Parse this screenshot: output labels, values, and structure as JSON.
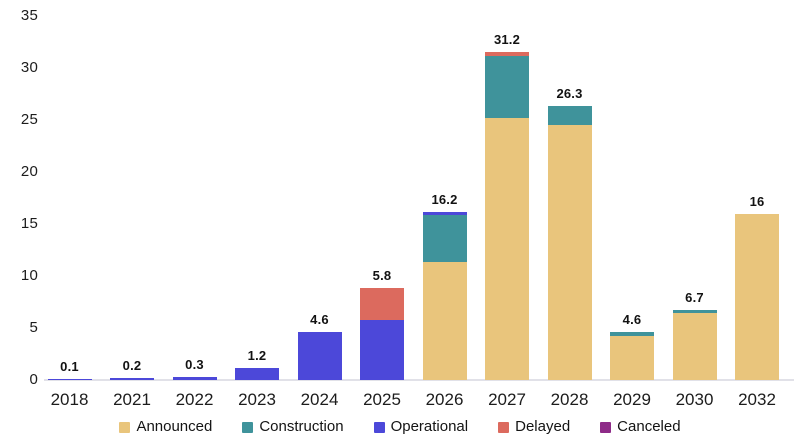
{
  "chart_data": {
    "type": "bar",
    "stacked": true,
    "title": "",
    "xlabel": "",
    "ylabel": "",
    "categories": [
      "2018",
      "2021",
      "2022",
      "2023",
      "2024",
      "2025",
      "2026",
      "2027",
      "2028",
      "2029",
      "2030",
      "2032"
    ],
    "series": [
      {
        "name": "Announced",
        "color": "#e9c57c",
        "values": [
          0,
          0,
          0,
          0,
          0,
          0,
          11.3,
          25.2,
          24.5,
          4.25,
          6.4,
          16
        ]
      },
      {
        "name": "Construction",
        "color": "#3f939b",
        "values": [
          0,
          0,
          0,
          0,
          0,
          0,
          4.6,
          6.0,
          1.8,
          0.35,
          0.3,
          0
        ]
      },
      {
        "name": "Operational",
        "color": "#4c48d9",
        "values": [
          0.1,
          0.2,
          0.3,
          1.2,
          4.6,
          5.8,
          0.3,
          0,
          0,
          0,
          0,
          0
        ]
      },
      {
        "name": "Delayed",
        "color": "#dc6a5e",
        "values": [
          0,
          0,
          0,
          0,
          0,
          3.0,
          0,
          0.3,
          0,
          0,
          0,
          0
        ]
      },
      {
        "name": "Canceled",
        "color": "#8e2b88",
        "values": [
          0,
          0,
          0,
          0,
          0,
          0,
          0,
          0,
          0,
          0,
          0,
          0
        ]
      }
    ],
    "bar_labels": [
      "0.1",
      "0.2",
      "0.3",
      "1.2",
      "4.6",
      "5.8",
      "16.2",
      "31.2",
      "26.3",
      "4.6",
      "6.7",
      "16"
    ],
    "y_ticks": [
      0,
      5,
      10,
      15,
      20,
      25,
      30,
      35
    ],
    "ylim": [
      0,
      35
    ],
    "grid": false,
    "legend_position": "bottom",
    "legend_labels": [
      "Announced",
      "Construction",
      "Operational",
      "Delayed",
      "Canceled"
    ]
  },
  "colors": {
    "background": "#ffffff",
    "axis_line": "#e1e1e8",
    "text": "#141414"
  }
}
